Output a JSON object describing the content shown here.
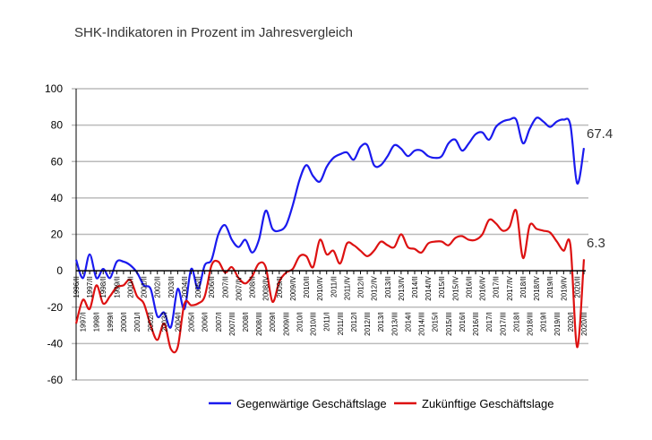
{
  "chart_data": {
    "type": "line",
    "title": "SHK-Indikatoren in Prozent im Jahresvergleich",
    "xlabel": "",
    "ylabel": "",
    "ylim": [
      -60,
      100
    ],
    "yticks": [
      100,
      80,
      60,
      40,
      20,
      0,
      -20,
      -40,
      -60
    ],
    "grid": true,
    "legend": "bottom",
    "x": [
      "1996/II",
      "1997/I",
      "1997/II",
      "1998/I",
      "1998/II",
      "1999/I",
      "1999/II",
      "2000/I",
      "2000/II",
      "2001/I",
      "2001/II",
      "2002/I",
      "2002/II",
      "2003/I",
      "2003/II",
      "2004/I",
      "2004/II",
      "2005/I",
      "2005/II",
      "2006/I",
      "2006/II",
      "2007/I",
      "2007/II",
      "2007/III",
      "2007/IV",
      "2008/I",
      "2008/II",
      "2008/III",
      "2008/IV",
      "2009/I",
      "2009/II",
      "2009/III",
      "2009/IV",
      "2010/I",
      "2010/II",
      "2010/III",
      "2010/IV",
      "2011/I",
      "2011/II",
      "2011/III",
      "2011/IV",
      "2012/I",
      "2012/II",
      "2012/III",
      "2012/IV",
      "2013/I",
      "2013/II",
      "2013/III",
      "2013/IV",
      "2014/I",
      "2014/II",
      "2014/III",
      "2014/IV",
      "2015/I",
      "2015/II",
      "2015/III",
      "2015/IV",
      "2016/I",
      "2016/II",
      "2016/III",
      "2016/IV",
      "2017/I",
      "2017/II",
      "2017/III",
      "2017/IV",
      "2018/I",
      "2018/II",
      "2018/III",
      "2018/IV",
      "2019/I",
      "2019/II",
      "2019/III",
      "2019/IV",
      "2020/I",
      "2020/II",
      "2020/III"
    ],
    "series": [
      {
        "name": "Gegenwärtige Geschäftslage",
        "color": "#1a1aee",
        "values": [
          6,
          -4,
          9,
          -4,
          1,
          -4,
          5,
          5,
          3,
          -1,
          -8,
          -10,
          -25,
          -23,
          -31,
          -10,
          -21,
          1,
          -10,
          3,
          6,
          20,
          25,
          17,
          13,
          17,
          10,
          17,
          33,
          23,
          22,
          25,
          36,
          50,
          58,
          52,
          49,
          57,
          62,
          64,
          65,
          61,
          68,
          69,
          58,
          58,
          63,
          69,
          67,
          63,
          66,
          66,
          63,
          62,
          63,
          70,
          72,
          66,
          70,
          75,
          76,
          72,
          79,
          82,
          83,
          83,
          70,
          78,
          84,
          82,
          79,
          82,
          83,
          80,
          48,
          67.4
        ]
      },
      {
        "name": "Zukünftige Geschäftslage",
        "color": "#dd1111",
        "values": [
          -29,
          -16,
          -21,
          -8,
          -18,
          -14,
          -9,
          -8,
          -5,
          -14,
          -18,
          -30,
          -38,
          -29,
          -43,
          -42,
          -18,
          -19,
          -18,
          -14,
          3,
          5,
          -1,
          2,
          -4,
          -7,
          -3,
          4,
          2,
          -17,
          -6,
          -1,
          1,
          8,
          8,
          2,
          17,
          9,
          11,
          4,
          15,
          14,
          11,
          8,
          11,
          16,
          14,
          13,
          20,
          13,
          12,
          10,
          15,
          16,
          16,
          14,
          18,
          19,
          17,
          17,
          20,
          28,
          26,
          22,
          24,
          33,
          7,
          25,
          23,
          22,
          21,
          16,
          11,
          14,
          -42,
          6.3
        ]
      }
    ],
    "annotations": [
      "67.4",
      "6.3"
    ]
  }
}
